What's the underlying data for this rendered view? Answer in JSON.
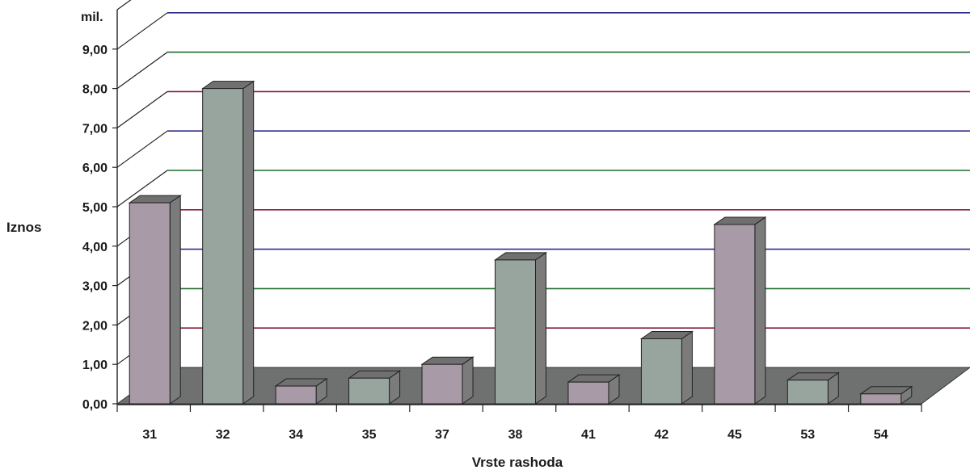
{
  "chart_data": {
    "type": "bar",
    "style": "3d",
    "unit_label": "mil.",
    "ylabel": "Iznos",
    "xlabel": "Vrste rashoda",
    "categories": [
      "31",
      "32",
      "34",
      "35",
      "37",
      "38",
      "41",
      "42",
      "45",
      "53",
      "54"
    ],
    "values": [
      5.1,
      8.0,
      0.45,
      0.65,
      1.0,
      3.65,
      0.55,
      1.65,
      4.55,
      0.6,
      0.25
    ],
    "y_tick_labels": [
      "0,00",
      "1,00",
      "2,00",
      "3,00",
      "4,00",
      "5,00",
      "6,00",
      "7,00",
      "8,00",
      "9,00"
    ],
    "ylim": [
      0,
      10
    ],
    "grid": true,
    "colors": {
      "bar_front_a": "#a89aa6",
      "bar_front_b": "#98a59f",
      "bar_top": "#707070",
      "bar_side": "#7b7b7b",
      "floor": "#6f7170",
      "grid_lines": [
        "#2b2b8a",
        "#8a1f3a",
        "#1f6b2e"
      ]
    }
  }
}
